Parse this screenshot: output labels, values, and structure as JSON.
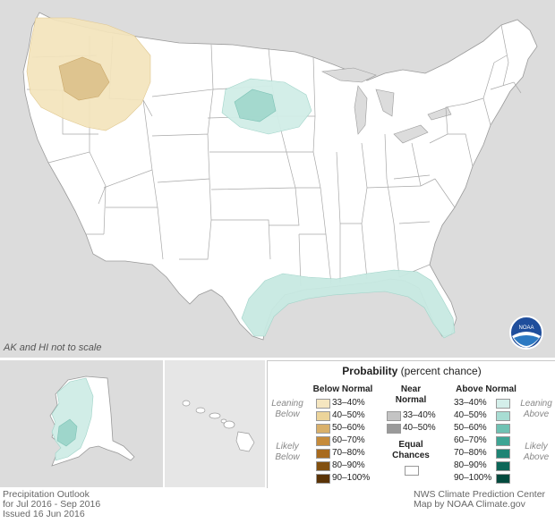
{
  "map_note": "AK and HI not to scale",
  "legend": {
    "title_bold": "Probability",
    "title_rest": " (percent chance)",
    "below_header": "Below Normal",
    "near_header_1": "Near",
    "near_header_2": "Normal",
    "above_header": "Above Normal",
    "leaning_1": "Leaning",
    "below_word": "Below",
    "above_word": "Above",
    "likely_1": "Likely",
    "equal_1": "Equal",
    "equal_2": "Chances",
    "below_rows": [
      {
        "label": "33–40%",
        "color": "#f5e6c0"
      },
      {
        "label": "40–50%",
        "color": "#ecd49a"
      },
      {
        "label": "50–60%",
        "color": "#d9b06a"
      },
      {
        "label": "60–70%",
        "color": "#c68b3a"
      },
      {
        "label": "70–80%",
        "color": "#a86a1e"
      },
      {
        "label": "80–90%",
        "color": "#82500f"
      },
      {
        "label": "90–100%",
        "color": "#5a3306"
      }
    ],
    "near_rows": [
      {
        "label": "33–40%",
        "color": "#c4c4c4"
      },
      {
        "label": "40–50%",
        "color": "#9a9a9a"
      }
    ],
    "above_rows": [
      {
        "label": "33–40%",
        "color": "#d4efea"
      },
      {
        "label": "40–50%",
        "color": "#a8ddd3"
      },
      {
        "label": "50–60%",
        "color": "#6fc2b3"
      },
      {
        "label": "60–70%",
        "color": "#3ea594"
      },
      {
        "label": "70–80%",
        "color": "#1e8474"
      },
      {
        "label": "80–90%",
        "color": "#0c6658"
      },
      {
        "label": "90–100%",
        "color": "#034a3e"
      }
    ]
  },
  "footer_left": {
    "line1": "Precipitation Outlook",
    "line2": "for Jul 2016 - Sep 2016",
    "line3": "Issued 16 Jun 2016"
  },
  "footer_right": {
    "line1": "NWS Climate Prediction Center",
    "line2": "Map by NOAA Climate.gov"
  },
  "logo_text": "NOAA"
}
